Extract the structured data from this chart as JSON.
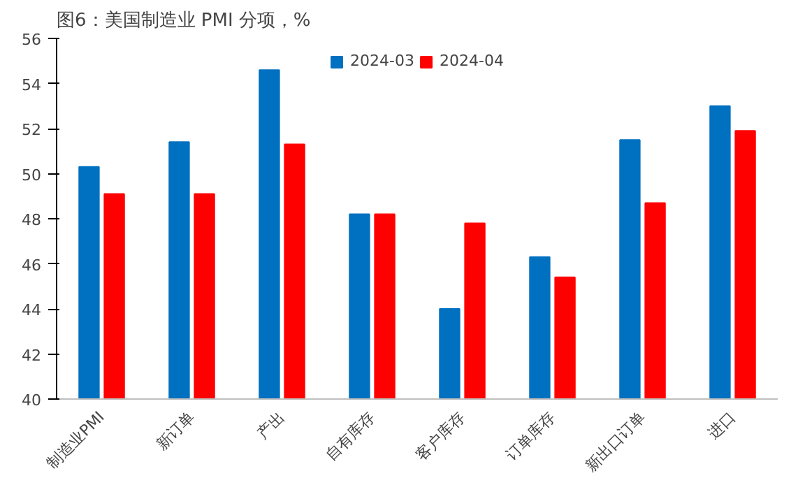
{
  "chart_data": {
    "type": "bar",
    "title": "图6：美国制造业 PMI 分项，%",
    "categories": [
      "制造业PMI",
      "新订单",
      "产出",
      "自有库存",
      "客户库存",
      "订单库存",
      "新出口订单",
      "进口"
    ],
    "series": [
      {
        "name": "2024-03",
        "color": "#0070c0",
        "values": [
          50.3,
          51.4,
          54.6,
          48.2,
          44.0,
          46.3,
          51.5,
          53.0
        ]
      },
      {
        "name": "2024-04",
        "color": "#ff0000",
        "values": [
          49.1,
          49.1,
          51.3,
          48.2,
          47.8,
          45.4,
          48.7,
          51.9
        ]
      }
    ],
    "ylim": [
      40,
      56
    ],
    "yticks": [
      40,
      42,
      44,
      46,
      48,
      50,
      52,
      54,
      56
    ],
    "legend": "top",
    "grid": false
  }
}
